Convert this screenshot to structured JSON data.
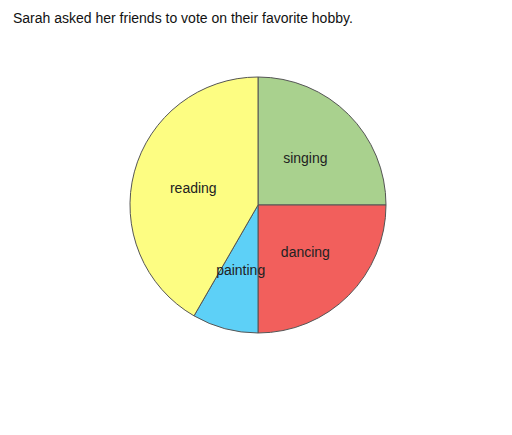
{
  "chart_data": {
    "type": "pie",
    "title": "Sarah asked her friends to vote on their favorite hobby.",
    "categories": [
      "singing",
      "dancing",
      "painting",
      "reading"
    ],
    "values": [
      3,
      3,
      1,
      5
    ],
    "colors": [
      "#a9d18e",
      "#f25f5c",
      "#5dd0f7",
      "#fdfd82"
    ]
  }
}
